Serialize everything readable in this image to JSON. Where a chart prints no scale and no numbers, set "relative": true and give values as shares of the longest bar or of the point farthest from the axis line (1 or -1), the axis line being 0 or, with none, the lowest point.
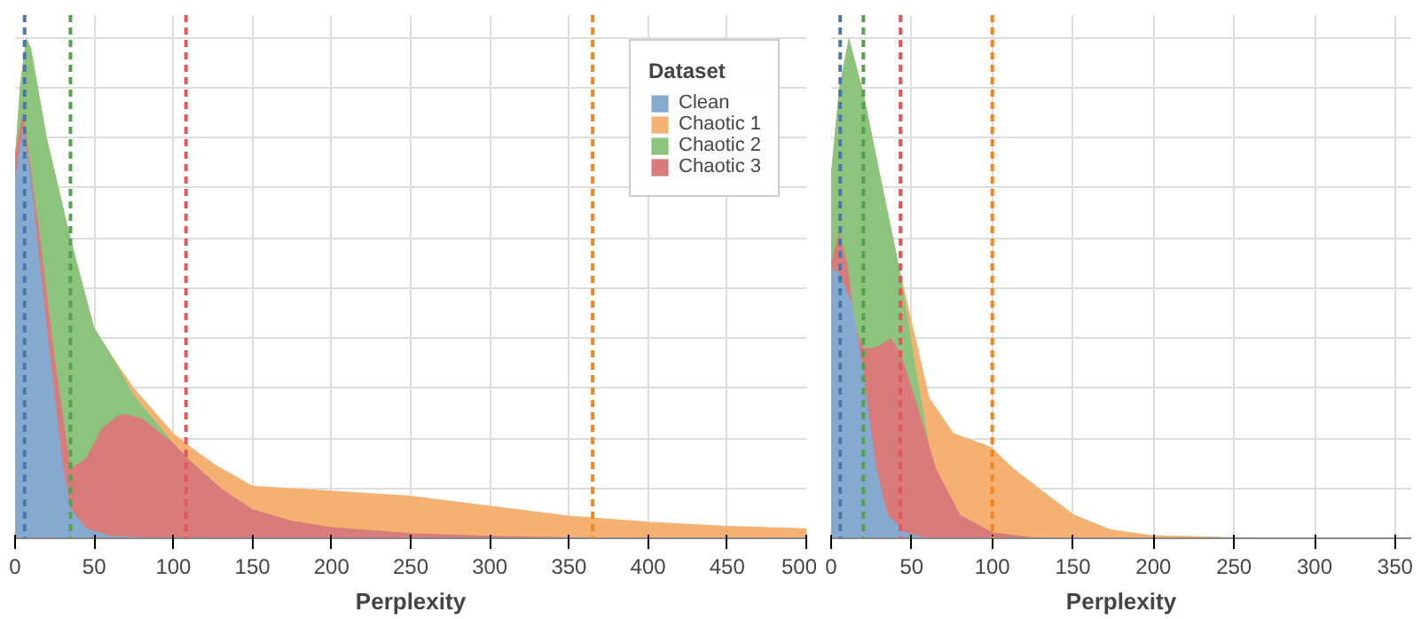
{
  "chart_data": [
    {
      "type": "area",
      "relative": true,
      "xlabel": "Perplexity",
      "xlim": [
        0,
        500
      ],
      "xticks": [
        0,
        50,
        100,
        150,
        200,
        250,
        300,
        350,
        400,
        450,
        500
      ],
      "grid": true,
      "legend": "top right",
      "legend_title": "Dataset",
      "series": [
        {
          "name": "Clean",
          "color": "#86a9cf",
          "x": [
            0,
            5,
            10,
            20,
            30,
            35,
            45,
            60,
            100,
            500
          ],
          "values": [
            0.72,
            0.82,
            0.72,
            0.42,
            0.15,
            0.06,
            0.02,
            0.005,
            0,
            0
          ]
        },
        {
          "name": "Chaotic 1",
          "color": "#f4b171",
          "x": [
            0,
            3,
            7,
            10,
            20,
            35,
            50,
            60,
            75,
            100,
            110,
            125,
            150,
            175,
            200,
            250,
            275,
            300,
            350,
            400,
            450,
            500
          ],
          "values": [
            0.76,
            0.9,
            1.0,
            0.98,
            0.8,
            0.6,
            0.42,
            0.37,
            0.3,
            0.21,
            0.185,
            0.15,
            0.105,
            0.1,
            0.095,
            0.085,
            0.075,
            0.065,
            0.045,
            0.033,
            0.025,
            0.02
          ]
        },
        {
          "name": "Chaotic 2",
          "color": "#8cc47e",
          "x": [
            0,
            3,
            7,
            10,
            20,
            35,
            50,
            60,
            75,
            100,
            110
          ],
          "values": [
            0.76,
            0.9,
            1.0,
            0.98,
            0.8,
            0.6,
            0.42,
            0.37,
            0.285,
            0.19,
            0.157
          ]
        },
        {
          "name": "Chaotic 3",
          "color": "#d97b7b",
          "x": [
            0,
            5,
            15,
            25,
            35,
            45,
            55,
            65,
            70,
            80,
            100,
            110,
            130,
            150,
            175,
            200,
            250,
            300,
            350,
            400,
            500
          ],
          "values": [
            0.77,
            0.85,
            0.62,
            0.36,
            0.14,
            0.16,
            0.22,
            0.245,
            0.248,
            0.24,
            0.19,
            0.157,
            0.1,
            0.058,
            0.035,
            0.022,
            0.01,
            0.005,
            0.002,
            0.001,
            0
          ]
        }
      ],
      "ref_lines": [
        {
          "axis": "x",
          "value": 6,
          "color": "#4c78a8",
          "line_style": "dashed"
        },
        {
          "axis": "x",
          "value": 365,
          "color": "#f58518",
          "line_style": "dashed"
        },
        {
          "axis": "x",
          "value": 35,
          "color": "#54a24b",
          "line_style": "dashed"
        },
        {
          "axis": "x",
          "value": 108,
          "color": "#e45756",
          "line_style": "dashed"
        }
      ]
    },
    {
      "type": "area",
      "relative": true,
      "xlabel": "Perplexity",
      "xlim": [
        0,
        360
      ],
      "xticks": [
        0,
        50,
        100,
        150,
        200,
        250,
        300,
        350
      ],
      "grid": true,
      "series": [
        {
          "color": "#86a9cf",
          "x": [
            0,
            5,
            13,
            20,
            28,
            35,
            46,
            60,
            360
          ],
          "values": [
            0.54,
            0.53,
            0.47,
            0.33,
            0.14,
            0.047,
            0.012,
            0,
            0
          ]
        },
        {
          "color": "#f4b171",
          "x": [
            0,
            5,
            11,
            20,
            32,
            43,
            61,
            76,
            99,
            113,
            136,
            151,
            173,
            199,
            250,
            300,
            360
          ],
          "values": [
            0.73,
            0.9,
            1.0,
            0.89,
            0.7,
            0.53,
            0.28,
            0.21,
            0.183,
            0.14,
            0.083,
            0.047,
            0.018,
            0.006,
            0.002,
            0,
            0
          ]
        },
        {
          "color": "#8cc47e",
          "x": [
            0,
            5,
            11,
            20,
            32,
            43,
            52,
            60
          ],
          "values": [
            0.73,
            0.9,
            1.0,
            0.89,
            0.7,
            0.53,
            0.35,
            0.2
          ]
        },
        {
          "color": "#d97b7b",
          "x": [
            0,
            5,
            10,
            15,
            20,
            25,
            30,
            37,
            43,
            54,
            65,
            80,
            100,
            125,
            150
          ],
          "values": [
            0.55,
            0.61,
            0.55,
            0.42,
            0.38,
            0.38,
            0.385,
            0.4,
            0.37,
            0.26,
            0.14,
            0.047,
            0.012,
            0.002,
            0
          ]
        }
      ],
      "ref_lines": [
        {
          "axis": "x",
          "value": 5.6,
          "color": "#4c78a8",
          "line_style": "dashed"
        },
        {
          "axis": "x",
          "value": 100,
          "color": "#f58518",
          "line_style": "dashed"
        },
        {
          "axis": "x",
          "value": 20,
          "color": "#54a24b",
          "line_style": "dashed"
        },
        {
          "axis": "x",
          "value": 43,
          "color": "#e45756",
          "line_style": "dashed"
        }
      ]
    }
  ]
}
